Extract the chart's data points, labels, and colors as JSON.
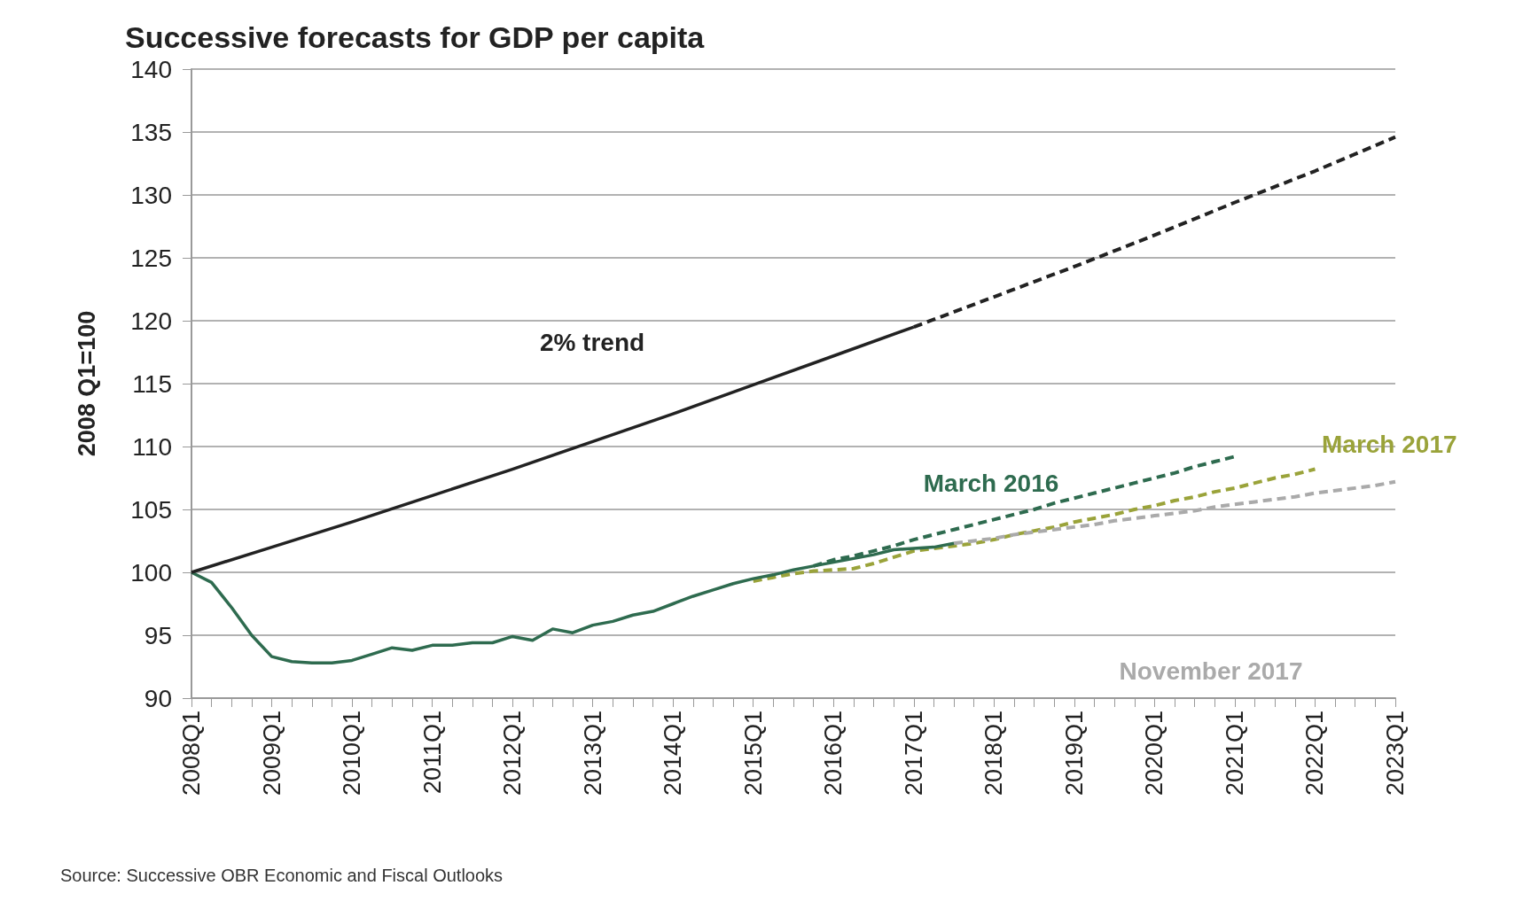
{
  "chart_data": {
    "type": "line",
    "title": "Successive forecasts for GDP per capita",
    "ylabel": "2008 Q1=100",
    "categories": [
      "2008Q1",
      null,
      null,
      null,
      "2009Q1",
      null,
      null,
      null,
      "2010Q1",
      null,
      null,
      null,
      "2011Q1",
      null,
      null,
      null,
      "2012Q1",
      null,
      null,
      null,
      "2013Q1",
      null,
      null,
      null,
      "2014Q1",
      null,
      null,
      null,
      "2015Q1",
      null,
      null,
      null,
      "2016Q1",
      null,
      null,
      null,
      "2017Q1",
      null,
      null,
      null,
      "2018Q1",
      null,
      null,
      null,
      "2019Q1",
      null,
      null,
      null,
      "2020Q1",
      null,
      null,
      null,
      "2021Q1",
      null,
      null,
      null,
      "2022Q1",
      null,
      null,
      null,
      "2023Q1"
    ],
    "series": [
      {
        "name": "2% trend",
        "color": "#222222",
        "line_style": "solid",
        "values": [
          100,
          null,
          null,
          null,
          102,
          null,
          null,
          null,
          104,
          null,
          null,
          null,
          106.1,
          null,
          null,
          null,
          108.2,
          null,
          null,
          null,
          110.4,
          null,
          null,
          null,
          112.6,
          null,
          null,
          null,
          114.9,
          null,
          null,
          null,
          117.2,
          null,
          null,
          null,
          119.5,
          null,
          null,
          null,
          null,
          null,
          null,
          null,
          null,
          null,
          null,
          null,
          null,
          null,
          null,
          null,
          null,
          null,
          null,
          null,
          null,
          null,
          null,
          null,
          null
        ]
      },
      {
        "color": "#222222",
        "line_style": "dashed",
        "values": [
          null,
          null,
          null,
          null,
          null,
          null,
          null,
          null,
          null,
          null,
          null,
          null,
          null,
          null,
          null,
          null,
          null,
          null,
          null,
          null,
          null,
          null,
          null,
          null,
          null,
          null,
          null,
          null,
          null,
          null,
          null,
          null,
          null,
          null,
          null,
          null,
          119.5,
          null,
          null,
          null,
          121.9,
          null,
          null,
          null,
          124.3,
          null,
          null,
          null,
          126.8,
          null,
          null,
          null,
          129.4,
          null,
          null,
          null,
          131.9,
          null,
          null,
          null,
          134.6
        ]
      },
      {
        "name": "November 2017",
        "color": "#aaaaaa",
        "line_style": "dashed",
        "values": [
          null,
          null,
          null,
          null,
          null,
          null,
          null,
          null,
          null,
          null,
          null,
          null,
          null,
          null,
          null,
          null,
          null,
          null,
          null,
          null,
          null,
          null,
          null,
          null,
          null,
          null,
          null,
          null,
          null,
          null,
          null,
          null,
          null,
          null,
          null,
          null,
          null,
          null,
          102.3,
          102.5,
          102.7,
          103.0,
          103.2,
          103.4,
          103.6,
          103.8,
          104.1,
          104.3,
          104.5,
          104.7,
          104.9,
          105.2,
          105.4,
          105.6,
          105.8,
          106.0,
          106.3,
          106.5,
          106.7,
          106.9,
          107.2
        ]
      },
      {
        "name": "March 2017",
        "color": "#9aa33a",
        "line_style": "dashed",
        "values": [
          null,
          null,
          null,
          null,
          null,
          null,
          null,
          null,
          null,
          null,
          null,
          null,
          null,
          null,
          null,
          null,
          null,
          null,
          null,
          null,
          null,
          null,
          null,
          null,
          null,
          null,
          null,
          null,
          99.3,
          99.6,
          99.9,
          100.1,
          100.2,
          100.3,
          100.7,
          101.2,
          101.7,
          101.9,
          102.1,
          102.3,
          102.6,
          103.0,
          103.3,
          103.6,
          104.0,
          104.3,
          104.6,
          105.0,
          105.3,
          105.7,
          106.0,
          106.4,
          106.7,
          107.1,
          107.5,
          107.8,
          108.2,
          null,
          null,
          null,
          null
        ]
      },
      {
        "name": "March 2016",
        "color": "#2e6b4f",
        "line_style": "dashed",
        "values": [
          null,
          null,
          null,
          null,
          null,
          null,
          null,
          null,
          null,
          null,
          null,
          null,
          null,
          null,
          null,
          null,
          null,
          null,
          null,
          null,
          null,
          null,
          null,
          null,
          null,
          null,
          null,
          null,
          null,
          null,
          null,
          100.5,
          101.0,
          101.3,
          101.7,
          102.1,
          102.6,
          103.0,
          103.4,
          103.8,
          104.2,
          104.6,
          105.0,
          105.5,
          105.9,
          106.3,
          106.7,
          107.1,
          107.5,
          107.9,
          108.4,
          108.8,
          109.2,
          null,
          null,
          null,
          null,
          null,
          null,
          null,
          null
        ]
      },
      {
        "color": "#2e6b4f",
        "line_style": "solid",
        "values": [
          100,
          99.2,
          97.2,
          95.0,
          93.3,
          92.9,
          92.8,
          92.8,
          93.0,
          93.5,
          94.0,
          93.8,
          94.2,
          94.2,
          94.4,
          94.4,
          94.9,
          94.6,
          95.5,
          95.2,
          95.8,
          96.1,
          96.6,
          96.9,
          97.5,
          98.1,
          98.6,
          99.1,
          99.5,
          99.8,
          100.2,
          100.5,
          100.8,
          101.1,
          101.4,
          101.8,
          101.9,
          102.0,
          102.3,
          null,
          null,
          null,
          null,
          null,
          null,
          null,
          null,
          null,
          null,
          null,
          null,
          null,
          null,
          null,
          null,
          null,
          null,
          null,
          null,
          null,
          null
        ]
      }
    ],
    "ylim": [
      90,
      140
    ],
    "yticks": [
      90,
      95,
      100,
      105,
      110,
      115,
      120,
      125,
      130,
      135,
      140
    ],
    "grid": "y",
    "legend": false,
    "marker": "none",
    "annotations": [
      "Source: Successive OBR Economic and Fiscal Outlooks"
    ]
  }
}
